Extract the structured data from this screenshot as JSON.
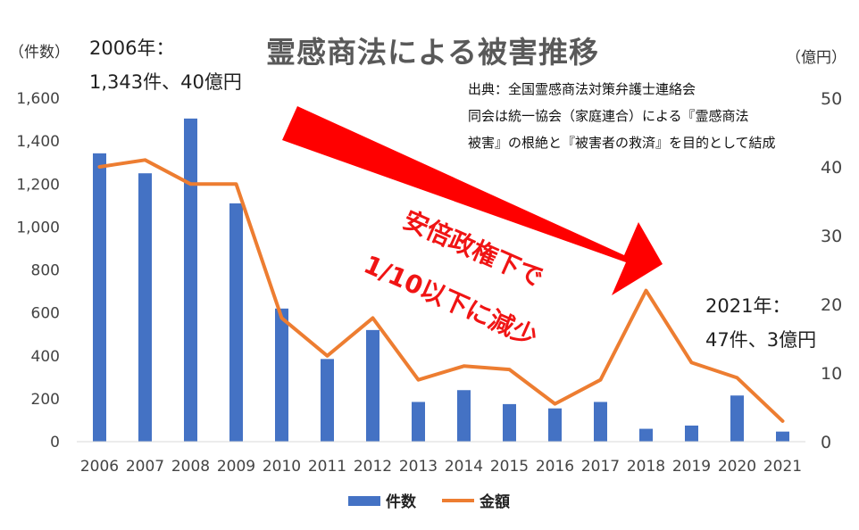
{
  "chart_data": {
    "type": "bar+line",
    "title": "霊感商法による被害推移",
    "categories": [
      "2006",
      "2007",
      "2008",
      "2009",
      "2010",
      "2011",
      "2012",
      "2013",
      "2014",
      "2015",
      "2016",
      "2017",
      "2018",
      "2019",
      "2020",
      "2021"
    ],
    "series": [
      {
        "name": "件数",
        "type": "bar",
        "axis": "left",
        "color": "#4472c4",
        "values": [
          1343,
          1250,
          1505,
          1110,
          620,
          385,
          520,
          185,
          240,
          175,
          155,
          185,
          60,
          75,
          215,
          47
        ]
      },
      {
        "name": "金額",
        "type": "line",
        "axis": "right",
        "color": "#ed7d31",
        "values": [
          40,
          41,
          37.5,
          37.5,
          18,
          12.5,
          18,
          9,
          11,
          10.5,
          5.5,
          9,
          22,
          11.5,
          9.3,
          3
        ]
      }
    ],
    "y_left": {
      "label": "（件数）",
      "min": 0,
      "max": 1600,
      "ticks": [
        {
          "v": 0,
          "t": "0"
        },
        {
          "v": 200,
          "t": "200"
        },
        {
          "v": 400,
          "t": "400"
        },
        {
          "v": 600,
          "t": "600"
        },
        {
          "v": 800,
          "t": "800"
        },
        {
          "v": 1000,
          "t": "1,000"
        },
        {
          "v": 1200,
          "t": "1,200"
        },
        {
          "v": 1400,
          "t": "1,400"
        },
        {
          "v": 1600,
          "t": "1,600"
        }
      ]
    },
    "y_right": {
      "label": "（億円）",
      "min": 0,
      "max": 50,
      "ticks": [
        {
          "v": 0,
          "t": "0"
        },
        {
          "v": 10,
          "t": "10"
        },
        {
          "v": 20,
          "t": "20"
        },
        {
          "v": 30,
          "t": "30"
        },
        {
          "v": 40,
          "t": "40"
        },
        {
          "v": 50,
          "t": "50"
        }
      ]
    },
    "grid": false,
    "legend": "bottom-center"
  },
  "annotations": {
    "start_year": "2006年：",
    "start_values": "1,343件、40億円",
    "end_year": "2021年：",
    "end_values": "47件、3億円",
    "source_lines": [
      "出典：全国霊感商法対策弁護士連絡会",
      "同会は統一協会（家庭連合）による『霊感商法",
      "被害』の根絶と『被害者の救済』を目的として結成"
    ],
    "arrow_line1": "安倍政権下で",
    "arrow_line2": "1/10以下に減少",
    "arrow_color": "#ff0000"
  }
}
